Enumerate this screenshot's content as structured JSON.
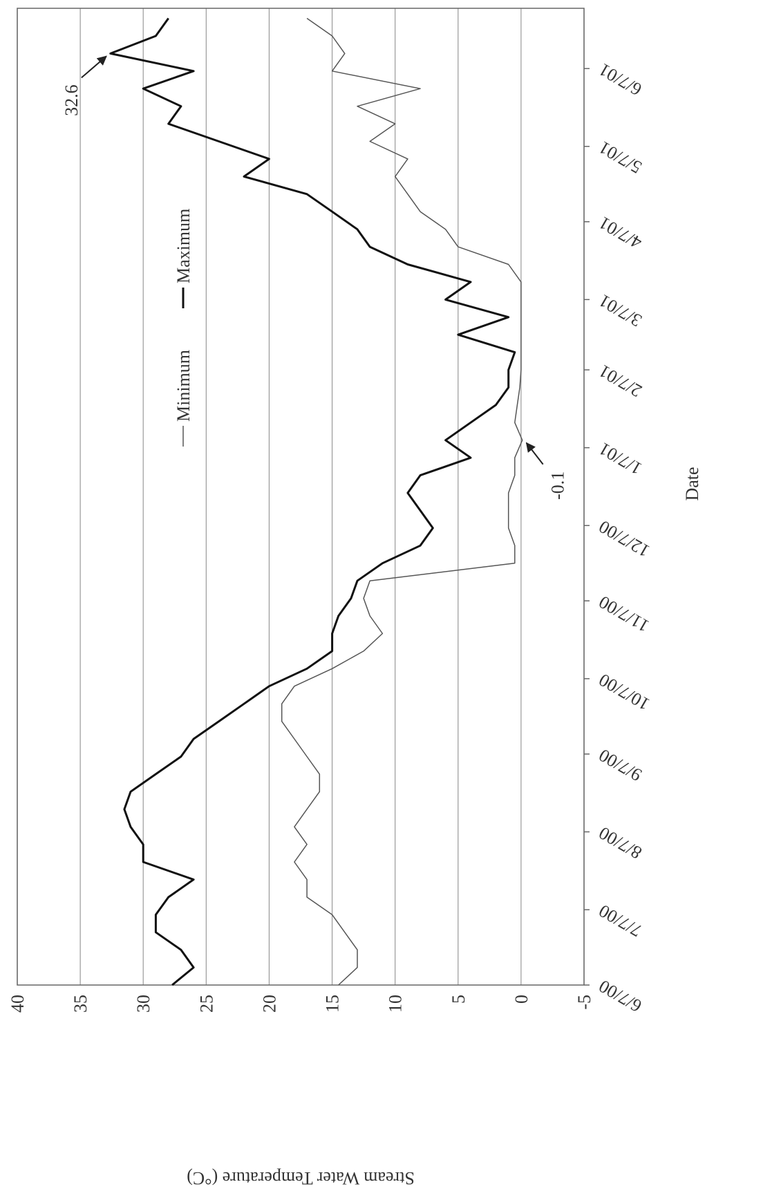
{
  "chart_data": {
    "type": "line",
    "y_label": "Stream Water Temperature (°C)",
    "x_label": "Date",
    "x": [
      "6/7/00",
      "6/14/00",
      "6/21/00",
      "6/28/00",
      "7/5/00",
      "7/12/00",
      "7/19/00",
      "7/26/00",
      "8/2/00",
      "8/9/00",
      "8/16/00",
      "8/23/00",
      "8/30/00",
      "9/6/00",
      "9/13/00",
      "9/20/00",
      "9/27/00",
      "10/4/00",
      "10/11/00",
      "10/18/00",
      "10/25/00",
      "11/1/00",
      "11/8/00",
      "11/15/00",
      "11/22/00",
      "11/29/00",
      "12/6/00",
      "12/13/00",
      "12/20/00",
      "12/27/00",
      "1/3/01",
      "1/10/01",
      "1/17/01",
      "1/24/01",
      "1/31/01",
      "2/7/01",
      "2/14/01",
      "2/21/01",
      "2/28/01",
      "3/7/01",
      "3/14/01",
      "3/21/01",
      "3/28/01",
      "4/4/01",
      "4/11/01",
      "4/18/01",
      "4/25/01",
      "5/2/01",
      "5/9/01",
      "5/16/01",
      "5/23/01",
      "5/30/01",
      "6/6/01",
      "6/13/01",
      "6/20/01",
      "6/27/01"
    ],
    "series": [
      {
        "name": "Minimum",
        "color": "#555555",
        "width": 1.5,
        "values": [
          14.5,
          13,
          13,
          14,
          15,
          17,
          17,
          18,
          17,
          18,
          17,
          16,
          16,
          17,
          18,
          19,
          19,
          18,
          15,
          12.5,
          11,
          12,
          12.5,
          12,
          0.5,
          0.5,
          1,
          1,
          1,
          0.5,
          0.5,
          -0.1,
          0.5,
          0.3,
          0.1,
          0,
          0,
          0,
          0,
          0,
          0,
          1,
          5,
          6,
          8,
          9,
          10,
          9,
          12,
          10,
          13,
          8,
          15,
          14,
          15,
          17
        ]
      },
      {
        "name": "Maximum",
        "color": "#111111",
        "width": 3,
        "values": [
          27.7,
          26,
          27,
          29,
          29,
          28,
          26,
          30,
          30,
          31,
          31.5,
          31,
          29,
          27,
          26,
          24,
          22,
          20,
          17,
          15,
          15,
          14.5,
          13.5,
          13,
          11,
          8,
          7,
          8,
          9,
          8,
          4,
          6,
          4,
          2,
          1,
          1,
          0.5,
          5,
          1,
          6,
          4,
          9,
          12,
          13,
          15,
          17,
          22,
          20,
          24,
          28,
          27,
          30,
          26,
          32.6,
          29,
          28
        ]
      }
    ],
    "xlim": [
      "6/7/00",
      "7/1/01"
    ],
    "xticks": [
      "6/7/00",
      "7/7/00",
      "8/7/00",
      "9/7/00",
      "10/7/00",
      "11/7/00",
      "12/7/00",
      "1/7/01",
      "2/7/01",
      "3/7/01",
      "4/7/01",
      "5/7/01",
      "6/7/01"
    ],
    "ylim": [
      -5,
      40
    ],
    "yticks": [
      -5,
      0,
      5,
      10,
      15,
      20,
      25,
      30,
      35,
      40
    ],
    "grid": true,
    "legend": "top",
    "annotations": [
      {
        "text": "32.6",
        "x": "6/13/01",
        "series": 1,
        "index": 53
      },
      {
        "text": "-0.1",
        "x": "1/10/01",
        "series": 0,
        "index": 31
      }
    ]
  }
}
